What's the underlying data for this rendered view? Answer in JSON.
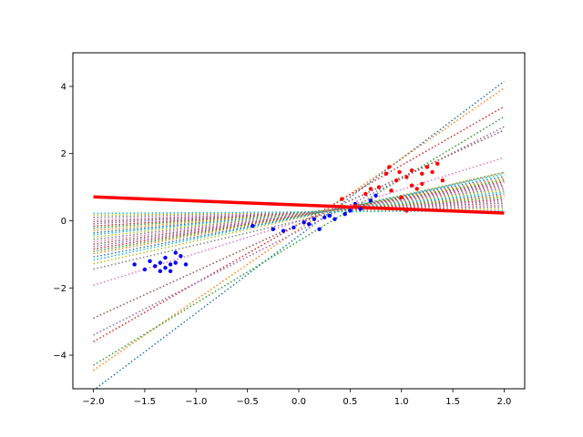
{
  "chart_data": {
    "type": "line",
    "title": "",
    "xlabel": "",
    "ylabel": "",
    "xlim": [
      -2.2,
      2.2
    ],
    "ylim": [
      -5,
      5
    ],
    "x_ticks": [
      -2.0,
      -1.5,
      -1.0,
      -0.5,
      0.0,
      0.5,
      1.0,
      1.5,
      2.0
    ],
    "x_tick_labels": [
      "−2.0",
      "−1.5",
      "−1.0",
      "−0.5",
      "0.0",
      "0.5",
      "1.0",
      "1.5",
      "2.0"
    ],
    "y_ticks": [
      -4,
      -2,
      0,
      2,
      4
    ],
    "y_tick_labels": [
      "−4",
      "−2",
      "0",
      "2",
      "4"
    ],
    "grid": false,
    "legend": "none",
    "line_x_range": [
      -2.0,
      2.0
    ],
    "dotted_series": [
      {
        "slope": 2.3,
        "intercept": -0.45,
        "color": "#1f77b4"
      },
      {
        "slope": 2.1,
        "intercept": -0.25,
        "color": "#ff7f0e"
      },
      {
        "slope": 1.85,
        "intercept": -0.6,
        "color": "#2ca02c"
      },
      {
        "slope": 1.75,
        "intercept": -0.1,
        "color": "#d62728"
      },
      {
        "slope": 1.55,
        "intercept": -0.3,
        "color": "#9467bd"
      },
      {
        "slope": 1.4,
        "intercept": -0.1,
        "color": "#8c564b"
      },
      {
        "slope": 0.95,
        "intercept": -0.02,
        "color": "#e377c2"
      },
      {
        "slope": 0.72,
        "intercept": 0.0,
        "color": "#7f7f7f"
      },
      {
        "slope": 0.68,
        "intercept": 0.08,
        "color": "#bcbd22"
      },
      {
        "slope": 0.64,
        "intercept": 0.11,
        "color": "#17becf"
      },
      {
        "slope": 0.6,
        "intercept": 0.12,
        "color": "#1f77b4"
      },
      {
        "slope": 0.56,
        "intercept": 0.14,
        "color": "#ff7f0e"
      },
      {
        "slope": 0.53,
        "intercept": 0.15,
        "color": "#2ca02c"
      },
      {
        "slope": 0.5,
        "intercept": 0.16,
        "color": "#d62728"
      },
      {
        "slope": 0.47,
        "intercept": 0.17,
        "color": "#9467bd"
      },
      {
        "slope": 0.44,
        "intercept": 0.18,
        "color": "#8c564b"
      },
      {
        "slope": 0.41,
        "intercept": 0.19,
        "color": "#e377c2"
      },
      {
        "slope": 0.38,
        "intercept": 0.2,
        "color": "#7f7f7f"
      },
      {
        "slope": 0.35,
        "intercept": 0.21,
        "color": "#bcbd22"
      },
      {
        "slope": 0.32,
        "intercept": 0.22,
        "color": "#17becf"
      },
      {
        "slope": 0.29,
        "intercept": 0.22,
        "color": "#1f77b4"
      },
      {
        "slope": 0.26,
        "intercept": 0.23,
        "color": "#ff7f0e"
      },
      {
        "slope": 0.23,
        "intercept": 0.24,
        "color": "#2ca02c"
      },
      {
        "slope": 0.2,
        "intercept": 0.24,
        "color": "#d62728"
      },
      {
        "slope": 0.17,
        "intercept": 0.25,
        "color": "#9467bd"
      },
      {
        "slope": 0.14,
        "intercept": 0.25,
        "color": "#8c564b"
      },
      {
        "slope": 0.11,
        "intercept": 0.25,
        "color": "#e377c2"
      },
      {
        "slope": 0.08,
        "intercept": 0.26,
        "color": "#7f7f7f"
      },
      {
        "slope": 0.05,
        "intercept": 0.26,
        "color": "#bcbd22"
      },
      {
        "slope": 0.02,
        "intercept": 0.26,
        "color": "#17becf"
      }
    ],
    "fit_line": {
      "slope": -0.12,
      "intercept": 0.47,
      "color": "#ff0000"
    },
    "points": [
      {
        "x": -1.35,
        "y": -1.25,
        "class": "blue"
      },
      {
        "x": -1.3,
        "y": -1.4,
        "class": "blue"
      },
      {
        "x": -1.25,
        "y": -1.3,
        "class": "blue"
      },
      {
        "x": -1.4,
        "y": -1.35,
        "class": "blue"
      },
      {
        "x": -1.3,
        "y": -1.1,
        "class": "blue"
      },
      {
        "x": -1.2,
        "y": -1.25,
        "class": "blue"
      },
      {
        "x": -1.45,
        "y": -1.2,
        "class": "blue"
      },
      {
        "x": -1.15,
        "y": -1.05,
        "class": "blue"
      },
      {
        "x": -1.5,
        "y": -1.45,
        "class": "blue"
      },
      {
        "x": -1.6,
        "y": -1.3,
        "class": "blue"
      },
      {
        "x": -1.25,
        "y": -1.5,
        "class": "blue"
      },
      {
        "x": -1.1,
        "y": -1.3,
        "class": "blue"
      },
      {
        "x": -1.35,
        "y": -1.5,
        "class": "blue"
      },
      {
        "x": -1.2,
        "y": -0.95,
        "class": "blue"
      },
      {
        "x": -0.45,
        "y": -0.15,
        "class": "blue"
      },
      {
        "x": -0.25,
        "y": -0.25,
        "class": "blue"
      },
      {
        "x": -0.15,
        "y": -0.3,
        "class": "blue"
      },
      {
        "x": -0.05,
        "y": -0.2,
        "class": "blue"
      },
      {
        "x": 0.05,
        "y": -0.05,
        "class": "blue"
      },
      {
        "x": 0.1,
        "y": -0.1,
        "class": "blue"
      },
      {
        "x": 0.15,
        "y": 0.05,
        "class": "blue"
      },
      {
        "x": 0.2,
        "y": -0.25,
        "class": "blue"
      },
      {
        "x": 0.25,
        "y": 0.1,
        "class": "blue"
      },
      {
        "x": 0.3,
        "y": 0.15,
        "class": "blue"
      },
      {
        "x": 0.35,
        "y": 0.05,
        "class": "blue"
      },
      {
        "x": 0.45,
        "y": 0.2,
        "class": "blue"
      },
      {
        "x": 0.5,
        "y": 0.3,
        "class": "blue"
      },
      {
        "x": 0.55,
        "y": 0.5,
        "class": "blue"
      },
      {
        "x": 0.6,
        "y": 0.35,
        "class": "blue"
      },
      {
        "x": 0.7,
        "y": 0.6,
        "class": "blue"
      },
      {
        "x": 0.75,
        "y": 0.75,
        "class": "blue"
      },
      {
        "x": 0.42,
        "y": 0.65,
        "class": "red"
      },
      {
        "x": 0.55,
        "y": 0.45,
        "class": "red"
      },
      {
        "x": 0.65,
        "y": 0.8,
        "class": "red"
      },
      {
        "x": 0.7,
        "y": 0.95,
        "class": "red"
      },
      {
        "x": 0.78,
        "y": 1.0,
        "class": "red"
      },
      {
        "x": 0.85,
        "y": 1.4,
        "class": "red"
      },
      {
        "x": 0.9,
        "y": 0.9,
        "class": "red"
      },
      {
        "x": 0.95,
        "y": 1.2,
        "class": "red"
      },
      {
        "x": 1.0,
        "y": 0.7,
        "class": "red"
      },
      {
        "x": 1.05,
        "y": 1.3,
        "class": "red"
      },
      {
        "x": 1.1,
        "y": 1.5,
        "class": "red"
      },
      {
        "x": 1.15,
        "y": 0.95,
        "class": "red"
      },
      {
        "x": 1.2,
        "y": 1.1,
        "class": "red"
      },
      {
        "x": 1.25,
        "y": 1.6,
        "class": "red"
      },
      {
        "x": 1.3,
        "y": 1.45,
        "class": "red"
      },
      {
        "x": 1.35,
        "y": 1.7,
        "class": "red"
      },
      {
        "x": 1.4,
        "y": 1.2,
        "class": "red"
      },
      {
        "x": 1.1,
        "y": 1.05,
        "class": "red"
      },
      {
        "x": 1.05,
        "y": 0.3,
        "class": "red"
      },
      {
        "x": 0.98,
        "y": 1.45,
        "class": "red"
      },
      {
        "x": 1.2,
        "y": 1.4,
        "class": "red"
      },
      {
        "x": 0.88,
        "y": 1.6,
        "class": "red"
      }
    ],
    "point_colors": {
      "blue": "#0000ff",
      "red": "#ff0000"
    }
  }
}
